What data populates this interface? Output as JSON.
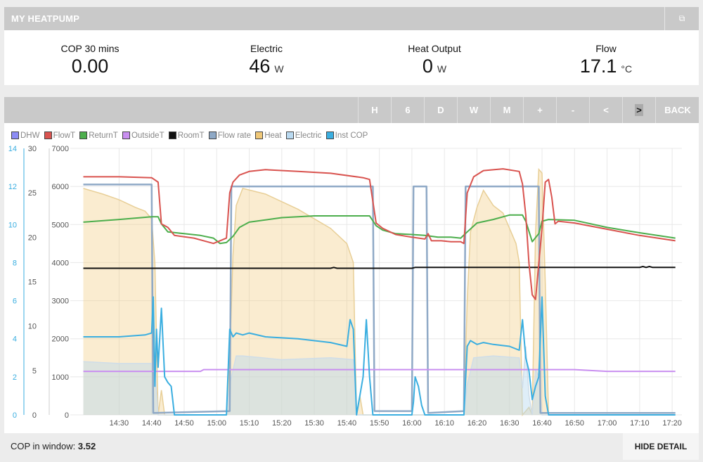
{
  "app": {
    "title": "MY HEATPUMP",
    "external_icon": "external-link-icon"
  },
  "stats": [
    {
      "label": "COP 30 mins",
      "value": "0.00",
      "unit": ""
    },
    {
      "label": "Electric",
      "value": "46",
      "unit": "W"
    },
    {
      "label": "Heat Output",
      "value": "0",
      "unit": "W"
    },
    {
      "label": "Flow",
      "value": "17.1",
      "unit": "°C"
    }
  ],
  "toolbar": {
    "buttons": [
      "H",
      "6",
      "D",
      "W",
      "M",
      "+",
      "-",
      "<",
      ">",
      "BACK"
    ]
  },
  "footer": {
    "cop_window_label": "COP in window:",
    "cop_window_value": "3.52",
    "hide_detail_label": "HIDE DETAIL"
  },
  "chart_data": {
    "type": "line",
    "legend": [
      {
        "name": "DHW",
        "color": "#8c8cf5"
      },
      {
        "name": "FlowT",
        "color": "#d9534f"
      },
      {
        "name": "ReturnT",
        "color": "#4cae4c"
      },
      {
        "name": "OutsideT",
        "color": "#c98ff0"
      },
      {
        "name": "RoomT",
        "color": "#111111"
      },
      {
        "name": "Flow rate",
        "color": "#8fa9c6"
      },
      {
        "name": "Heat",
        "color": "#f0c878"
      },
      {
        "name": "Electric",
        "color": "#b9d9f0"
      },
      {
        "name": "Inst COP",
        "color": "#3aaee0"
      }
    ],
    "axes": {
      "cop_axis": {
        "ticks": [
          "0",
          "2",
          "4",
          "6",
          "8",
          "10",
          "12",
          "14"
        ],
        "range": [
          0,
          14
        ]
      },
      "temp_axis": {
        "ticks": [
          "0",
          "5",
          "10",
          "15",
          "20",
          "25",
          "30"
        ],
        "range": [
          0,
          30
        ]
      },
      "power_axis": {
        "ticks": [
          "0",
          "1000",
          "2000",
          "3000",
          "4000",
          "5000",
          "6000",
          "7000"
        ],
        "range": [
          0,
          7000
        ]
      },
      "x_axis": {
        "ticks": [
          "14:30",
          "14:40",
          "14:50",
          "15:00",
          "15:10",
          "15:20",
          "15:30",
          "15:40",
          "15:50",
          "16:00",
          "16:10",
          "16:20",
          "16:30",
          "16:40",
          "16:50",
          "17:00",
          "17:10",
          "17:20"
        ],
        "range_minutes": [
          855,
          1043
        ]
      }
    },
    "series": [
      {
        "name": "FlowT",
        "axis": "temp",
        "points": [
          [
            859,
            26.8
          ],
          [
            870,
            26.8
          ],
          [
            880,
            26.7
          ],
          [
            882,
            26.2
          ],
          [
            883,
            21.5
          ],
          [
            885,
            21.1
          ],
          [
            887,
            20.2
          ],
          [
            893,
            19.9
          ],
          [
            897,
            19.5
          ],
          [
            899,
            19.3
          ],
          [
            901,
            19.6
          ],
          [
            903,
            19.9
          ],
          [
            904,
            25.0
          ],
          [
            905,
            26.2
          ],
          [
            907,
            27.0
          ],
          [
            910,
            27.4
          ],
          [
            915,
            27.6
          ],
          [
            925,
            27.4
          ],
          [
            935,
            27.2
          ],
          [
            945,
            26.7
          ],
          [
            947,
            26.5
          ],
          [
            949,
            21.6
          ],
          [
            951,
            21.0
          ],
          [
            955,
            20.3
          ],
          [
            960,
            20.0
          ],
          [
            964,
            19.8
          ],
          [
            965,
            20.4
          ],
          [
            966,
            19.6
          ],
          [
            969,
            19.6
          ],
          [
            972,
            19.5
          ],
          [
            975,
            19.5
          ],
          [
            976,
            19.3
          ],
          [
            977,
            25.0
          ],
          [
            979,
            26.8
          ],
          [
            982,
            27.5
          ],
          [
            988,
            27.7
          ],
          [
            993,
            27.4
          ],
          [
            994,
            26.0
          ],
          [
            995,
            22.5
          ],
          [
            996,
            17.0
          ],
          [
            997,
            13.5
          ],
          [
            998,
            13.0
          ],
          [
            1000,
            21.0
          ],
          [
            1001,
            26.2
          ],
          [
            1002,
            26.5
          ],
          [
            1003,
            24.5
          ],
          [
            1004,
            21.5
          ],
          [
            1005,
            21.8
          ],
          [
            1010,
            21.6
          ],
          [
            1020,
            20.9
          ],
          [
            1030,
            20.2
          ],
          [
            1041,
            19.6
          ]
        ]
      },
      {
        "name": "ReturnT",
        "axis": "temp",
        "points": [
          [
            859,
            21.7
          ],
          [
            870,
            22.0
          ],
          [
            880,
            22.3
          ],
          [
            882,
            22.3
          ],
          [
            883,
            21.5
          ],
          [
            885,
            20.6
          ],
          [
            890,
            20.4
          ],
          [
            895,
            20.2
          ],
          [
            899,
            19.9
          ],
          [
            901,
            19.3
          ],
          [
            903,
            19.4
          ],
          [
            905,
            20.1
          ],
          [
            907,
            21.1
          ],
          [
            910,
            21.7
          ],
          [
            920,
            22.2
          ],
          [
            930,
            22.4
          ],
          [
            945,
            22.4
          ],
          [
            947,
            22.4
          ],
          [
            949,
            21.3
          ],
          [
            951,
            20.8
          ],
          [
            955,
            20.4
          ],
          [
            960,
            20.3
          ],
          [
            964,
            20.2
          ],
          [
            968,
            20.0
          ],
          [
            972,
            20.0
          ],
          [
            975,
            19.9
          ],
          [
            977,
            20.6
          ],
          [
            980,
            21.6
          ],
          [
            985,
            22.0
          ],
          [
            990,
            22.5
          ],
          [
            994,
            22.5
          ],
          [
            995,
            21.8
          ],
          [
            997,
            19.5
          ],
          [
            999,
            20.4
          ],
          [
            1000,
            21.8
          ],
          [
            1002,
            22.0
          ],
          [
            1010,
            21.9
          ],
          [
            1020,
            21.1
          ],
          [
            1030,
            20.5
          ],
          [
            1041,
            19.9
          ]
        ]
      },
      {
        "name": "RoomT",
        "axis": "temp",
        "points": [
          [
            859,
            16.5
          ],
          [
            935,
            16.5
          ],
          [
            936,
            16.6
          ],
          [
            937,
            16.5
          ],
          [
            960,
            16.5
          ],
          [
            961,
            16.6
          ],
          [
            1030,
            16.6
          ],
          [
            1031,
            16.7
          ],
          [
            1032,
            16.6
          ],
          [
            1033,
            16.7
          ],
          [
            1034,
            16.6
          ],
          [
            1041,
            16.6
          ]
        ]
      },
      {
        "name": "OutsideT",
        "axis": "temp",
        "points": [
          [
            859,
            4.9
          ],
          [
            895,
            4.9
          ],
          [
            896,
            5.1
          ],
          [
            1010,
            5.1
          ],
          [
            1020,
            4.9
          ],
          [
            1041,
            4.9
          ]
        ]
      },
      {
        "name": "Flow rate",
        "axis": "cop",
        "points": [
          [
            859,
            12.1
          ],
          [
            880,
            12.1
          ],
          [
            880.5,
            0.1
          ],
          [
            904,
            0.2
          ],
          [
            904.5,
            12.0
          ],
          [
            948,
            12.0
          ],
          [
            948.5,
            0.2
          ],
          [
            960,
            0.2
          ],
          [
            960.5,
            12.0
          ],
          [
            964.5,
            12.0
          ],
          [
            965,
            0.1
          ],
          [
            976,
            0.2
          ],
          [
            976.5,
            12.0
          ],
          [
            999,
            12.0
          ],
          [
            999.5,
            0.1
          ],
          [
            1041,
            0.1
          ]
        ]
      },
      {
        "name": "Heat",
        "axis": "power",
        "fill": true,
        "points": [
          [
            859,
            5950
          ],
          [
            865,
            5800
          ],
          [
            870,
            5650
          ],
          [
            875,
            5450
          ],
          [
            878,
            5350
          ],
          [
            880,
            5150
          ],
          [
            881,
            4000
          ],
          [
            882,
            0
          ],
          [
            883,
            650
          ],
          [
            884,
            0
          ],
          [
            903,
            0
          ],
          [
            904,
            1500
          ],
          [
            905,
            4200
          ],
          [
            906,
            5500
          ],
          [
            908,
            5950
          ],
          [
            915,
            5800
          ],
          [
            925,
            5400
          ],
          [
            935,
            4900
          ],
          [
            940,
            4500
          ],
          [
            942,
            4000
          ],
          [
            943,
            0
          ],
          [
            944,
            500
          ],
          [
            945,
            0
          ],
          [
            976,
            0
          ],
          [
            977,
            3000
          ],
          [
            978,
            4800
          ],
          [
            980,
            5450
          ],
          [
            982,
            5900
          ],
          [
            985,
            5500
          ],
          [
            988,
            5300
          ],
          [
            992,
            4500
          ],
          [
            993,
            4000
          ],
          [
            994,
            0
          ],
          [
            996,
            200
          ],
          [
            997,
            0
          ],
          [
            998,
            4800
          ],
          [
            999,
            6450
          ],
          [
            1000,
            6350
          ],
          [
            1001,
            3500
          ],
          [
            1002,
            0
          ],
          [
            1041,
            0
          ]
        ]
      },
      {
        "name": "Electric",
        "axis": "power",
        "fill": true,
        "points": [
          [
            859,
            1400
          ],
          [
            870,
            1350
          ],
          [
            880,
            1350
          ],
          [
            881,
            1200
          ],
          [
            882,
            0
          ],
          [
            903,
            0
          ],
          [
            904,
            800
          ],
          [
            906,
            1550
          ],
          [
            908,
            1550
          ],
          [
            920,
            1450
          ],
          [
            935,
            1500
          ],
          [
            942,
            1450
          ],
          [
            943,
            0
          ],
          [
            976,
            0
          ],
          [
            977,
            800
          ],
          [
            979,
            1500
          ],
          [
            985,
            1550
          ],
          [
            993,
            1500
          ],
          [
            994,
            700
          ],
          [
            995,
            1800
          ],
          [
            996,
            500
          ],
          [
            997,
            0
          ],
          [
            998,
            1200
          ],
          [
            999,
            1000
          ],
          [
            1000,
            0
          ],
          [
            1041,
            0
          ]
        ]
      },
      {
        "name": "Inst COP",
        "axis": "cop",
        "points": [
          [
            859,
            4.1
          ],
          [
            870,
            4.1
          ],
          [
            878,
            4.2
          ],
          [
            880,
            4.3
          ],
          [
            880.5,
            6.2
          ],
          [
            881,
            1.5
          ],
          [
            881.5,
            4.5
          ],
          [
            882,
            2.5
          ],
          [
            883,
            5.6
          ],
          [
            884,
            2.0
          ],
          [
            885,
            1.7
          ],
          [
            886,
            1.5
          ],
          [
            887,
            0
          ],
          [
            903,
            0
          ],
          [
            904,
            4.5
          ],
          [
            905,
            4.1
          ],
          [
            906,
            4.3
          ],
          [
            908,
            4.2
          ],
          [
            910,
            4.3
          ],
          [
            915,
            4.1
          ],
          [
            925,
            4.0
          ],
          [
            935,
            3.8
          ],
          [
            940,
            3.6
          ],
          [
            941,
            5.0
          ],
          [
            942,
            4.5
          ],
          [
            943,
            0
          ],
          [
            945,
            2.0
          ],
          [
            946,
            5.0
          ],
          [
            947,
            2.0
          ],
          [
            948,
            0
          ],
          [
            960,
            0
          ],
          [
            960.5,
            0.7
          ],
          [
            961,
            2.0
          ],
          [
            962,
            1.5
          ],
          [
            963,
            0.5
          ],
          [
            964,
            0
          ],
          [
            976,
            0
          ],
          [
            977,
            3.6
          ],
          [
            978,
            3.9
          ],
          [
            980,
            3.7
          ],
          [
            982,
            3.8
          ],
          [
            985,
            3.7
          ],
          [
            990,
            3.6
          ],
          [
            993,
            3.4
          ],
          [
            994,
            5.0
          ],
          [
            995,
            3.0
          ],
          [
            996,
            2.3
          ],
          [
            997,
            0.8
          ],
          [
            998,
            1.5
          ],
          [
            999,
            2.0
          ],
          [
            1000,
            6.2
          ],
          [
            1001,
            1.0
          ],
          [
            1002,
            0
          ],
          [
            1041,
            0
          ]
        ]
      }
    ]
  }
}
